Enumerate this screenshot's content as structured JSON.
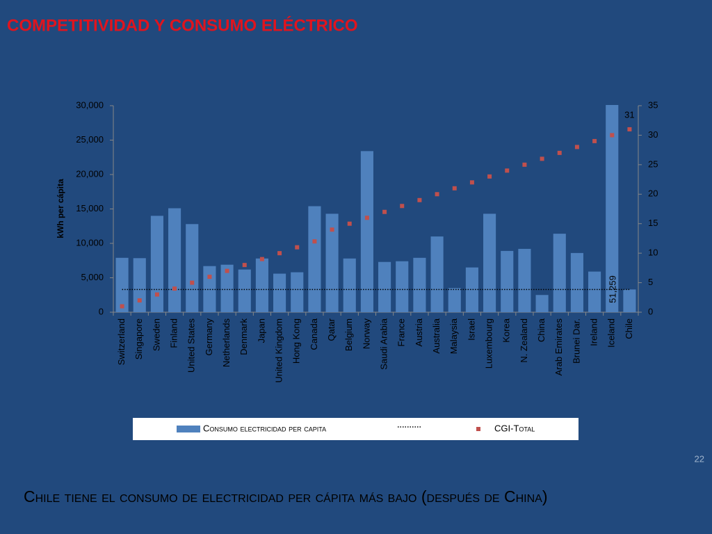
{
  "title": "COMPETITIVIDAD Y CONSUMO ELÉCTRICO",
  "page_number": "22",
  "caption": "Chile tiene el consumo de electricidad per cápita más bajo (después de China)",
  "chart_data": {
    "type": "bar",
    "ylabel": "kWh per cápita",
    "categories": [
      "Switzerland",
      "Singapore",
      "Sweden",
      "Finland",
      "United States",
      "Germany",
      "Netherlands",
      "Denmark",
      "Japan",
      "United Kingdom",
      "Hong Kong",
      "Canada",
      "Qatar",
      "Belgium",
      "Norway",
      "Saudi Arabia",
      "France",
      "Austria",
      "Australia",
      "Malaysia",
      "Israel",
      "Luxembourg",
      "Korea",
      "N. Zealand",
      "China",
      "Arab Emirates",
      "Brunei Dar.",
      "Ireland",
      "Iceland",
      "Chile"
    ],
    "series": [
      {
        "name": "Consumo electricidad per capita",
        "type": "bar",
        "color": "#4f81bd",
        "values": [
          7900,
          7850,
          14000,
          15100,
          12800,
          6700,
          6900,
          6200,
          7800,
          5600,
          5800,
          15400,
          14300,
          7800,
          23400,
          7300,
          7400,
          7900,
          11000,
          3500,
          6500,
          14300,
          8900,
          9200,
          2500,
          11400,
          8600,
          5900,
          51259,
          3300
        ],
        "value_labels": [
          null,
          null,
          null,
          null,
          null,
          null,
          null,
          null,
          null,
          null,
          null,
          null,
          null,
          null,
          null,
          null,
          null,
          null,
          null,
          null,
          null,
          null,
          null,
          null,
          null,
          null,
          null,
          null,
          "51,259",
          null
        ]
      },
      {
        "type": "line",
        "style": "dotted",
        "color": "#000000",
        "values": [
          3300,
          3300,
          3300,
          3300,
          3300,
          3300,
          3300,
          3300,
          3300,
          3300,
          3300,
          3300,
          3300,
          3300,
          3300,
          3300,
          3300,
          3300,
          3300,
          3300,
          3300,
          3300,
          3300,
          3300,
          3300,
          3300,
          3300,
          3300,
          3300,
          3300
        ]
      },
      {
        "name": "CGI-Total",
        "type": "scatter",
        "axis": "y2",
        "color": "#c0504d",
        "values": [
          1,
          2,
          3,
          4,
          5,
          6,
          7,
          8,
          9,
          10,
          11,
          12,
          14,
          15,
          16,
          17,
          18,
          19,
          20,
          21,
          22,
          23,
          24,
          25,
          26,
          27,
          28,
          29,
          30,
          31
        ],
        "value_labels": [
          null,
          null,
          null,
          null,
          null,
          null,
          null,
          null,
          null,
          null,
          null,
          null,
          null,
          null,
          null,
          null,
          null,
          null,
          null,
          null,
          null,
          null,
          null,
          null,
          null,
          null,
          null,
          null,
          null,
          "31"
        ]
      }
    ],
    "ylim": [
      0,
      30000
    ],
    "yticks": [
      {
        "value": 0,
        "label": "0"
      },
      {
        "value": 5000,
        "label": "5,000"
      },
      {
        "value": 10000,
        "label": "10,000"
      },
      {
        "value": 15000,
        "label": "15,000"
      },
      {
        "value": 20000,
        "label": "20,000"
      },
      {
        "value": 25000,
        "label": "25,000"
      },
      {
        "value": 30000,
        "label": "30,000"
      }
    ],
    "y2lim": [
      0,
      35
    ],
    "y2ticks": [
      0,
      5,
      10,
      15,
      20,
      25,
      30,
      35
    ],
    "legend": "bottom"
  }
}
